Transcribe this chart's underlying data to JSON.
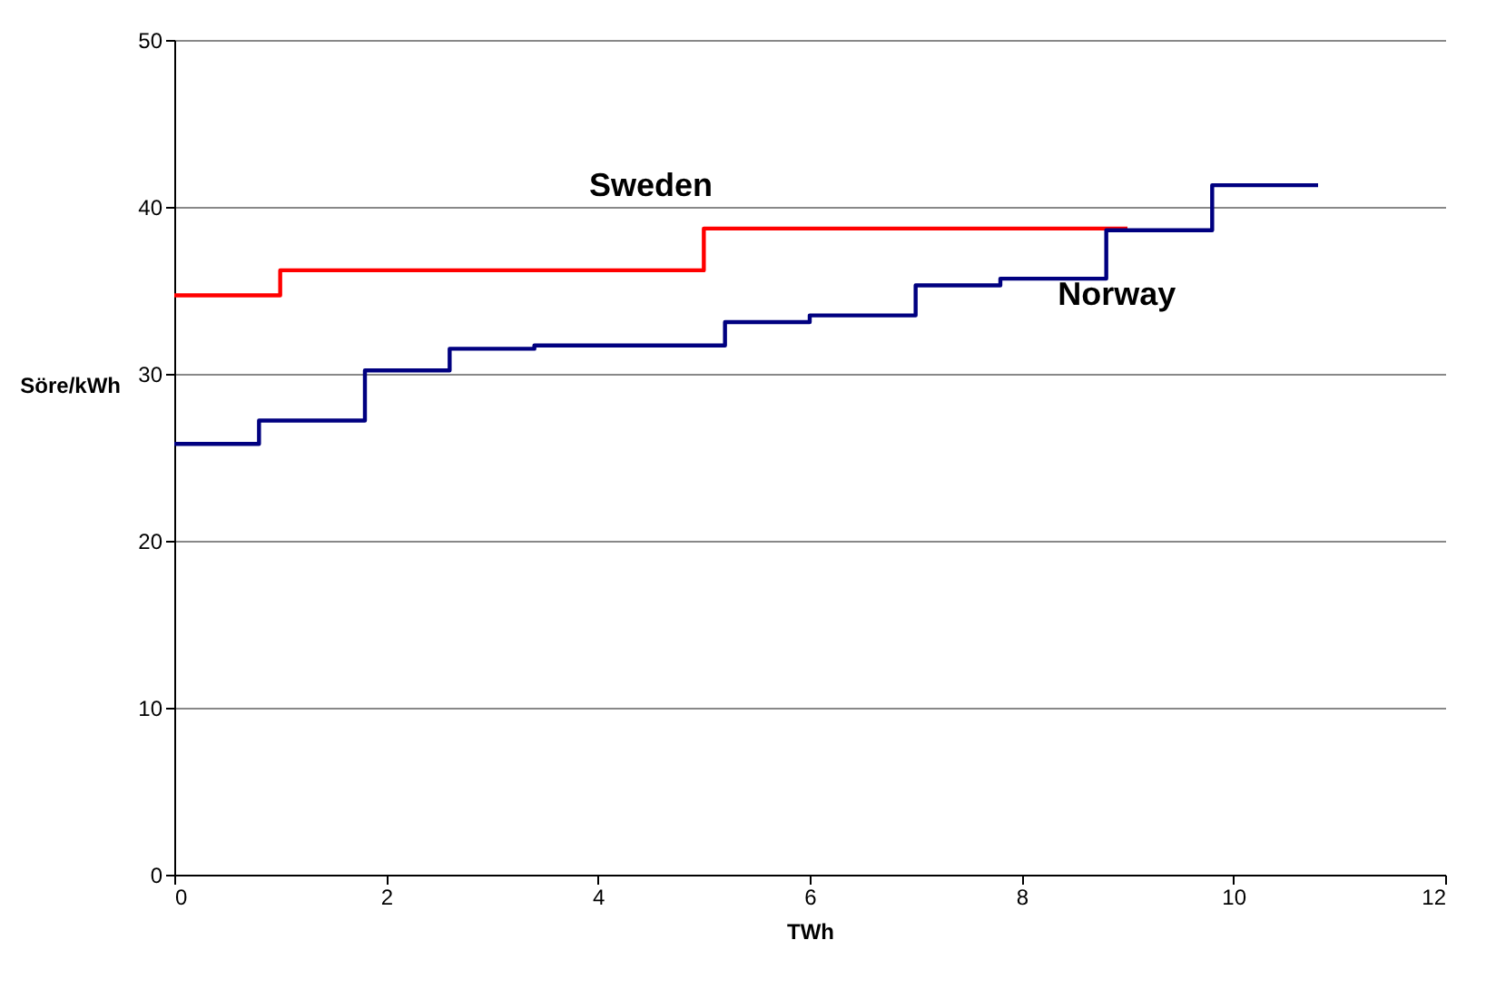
{
  "chart_data": {
    "type": "step",
    "xlabel": "TWh",
    "ylabel": "Söre/kWh",
    "xlim": [
      0,
      12
    ],
    "xticks": [
      0,
      2,
      4,
      6,
      8,
      10,
      12
    ],
    "ylim": [
      0,
      50
    ],
    "yticks": [
      0,
      10,
      20,
      30,
      40,
      50
    ],
    "grid": "y",
    "legend": false,
    "marker": "none",
    "line_style": "solid",
    "series": [
      {
        "name": "Sweden",
        "color": "#ff0000",
        "x": [
          0,
          1,
          5,
          9
        ],
        "values": [
          34.7,
          36.2,
          38.7,
          38.7
        ]
      },
      {
        "name": "Norway",
        "color": "#000080",
        "x": [
          0,
          0.8,
          1.8,
          2.6,
          3.4,
          5.2,
          6,
          7,
          7.8,
          8.8,
          9.8,
          10.8
        ],
        "values": [
          25.8,
          27.2,
          30.2,
          31.5,
          31.7,
          33.1,
          33.5,
          35.3,
          35.7,
          38.6,
          41.3,
          41.3
        ]
      }
    ]
  }
}
